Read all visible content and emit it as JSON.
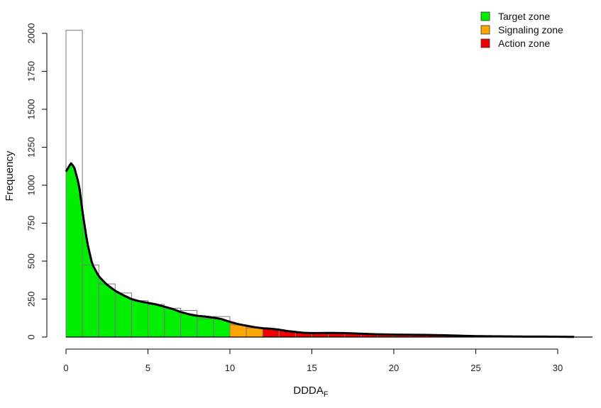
{
  "chart_data": {
    "type": "bar",
    "xlabel": "DDDA",
    "xlabel_sub": "F",
    "ylabel": "Frequency",
    "xlim": [
      0,
      31
    ],
    "ylim": [
      0,
      2000
    ],
    "x_ticks": [
      0,
      5,
      10,
      15,
      20,
      25,
      30
    ],
    "y_ticks": [
      0,
      250,
      500,
      750,
      1000,
      1250,
      1500,
      1750,
      2000
    ],
    "histogram": {
      "bin_width": 1,
      "bins": [
        {
          "x0": 0,
          "x1": 1,
          "count": 2020
        },
        {
          "x0": 1,
          "x1": 2,
          "count": 475
        },
        {
          "x0": 2,
          "x1": 3,
          "count": 350
        },
        {
          "x0": 3,
          "x1": 4,
          "count": 290
        },
        {
          "x0": 4,
          "x1": 5,
          "count": 240
        },
        {
          "x0": 5,
          "x1": 6,
          "count": 215
        },
        {
          "x0": 6,
          "x1": 7,
          "count": 190
        },
        {
          "x0": 7,
          "x1": 8,
          "count": 175
        },
        {
          "x0": 8,
          "x1": 9,
          "count": 120
        },
        {
          "x0": 9,
          "x1": 10,
          "count": 135
        },
        {
          "x0": 10,
          "x1": 11,
          "count": 80
        },
        {
          "x0": 11,
          "x1": 12,
          "count": 60
        },
        {
          "x0": 12,
          "x1": 13,
          "count": 55
        },
        {
          "x0": 13,
          "x1": 14,
          "count": 40
        },
        {
          "x0": 14,
          "x1": 15,
          "count": 30
        },
        {
          "x0": 15,
          "x1": 16,
          "count": 25
        },
        {
          "x0": 16,
          "x1": 17,
          "count": 30
        },
        {
          "x0": 17,
          "x1": 18,
          "count": 25
        },
        {
          "x0": 18,
          "x1": 19,
          "count": 20
        },
        {
          "x0": 19,
          "x1": 20,
          "count": 15
        },
        {
          "x0": 20,
          "x1": 21,
          "count": 15
        },
        {
          "x0": 21,
          "x1": 22,
          "count": 15
        },
        {
          "x0": 22,
          "x1": 23,
          "count": 10
        },
        {
          "x0": 23,
          "x1": 24,
          "count": 8
        },
        {
          "x0": 24,
          "x1": 25,
          "count": 6
        },
        {
          "x0": 25,
          "x1": 26,
          "count": 4
        },
        {
          "x0": 26,
          "x1": 27,
          "count": 3
        },
        {
          "x0": 27,
          "x1": 28,
          "count": 2
        },
        {
          "x0": 28,
          "x1": 29,
          "count": 3
        },
        {
          "x0": 29,
          "x1": 30,
          "count": 2
        }
      ]
    },
    "density_curve": {
      "x": [
        0,
        0.3,
        0.5,
        0.8,
        1.0,
        1.3,
        1.6,
        2.0,
        2.5,
        3.0,
        3.5,
        4.0,
        4.5,
        5.0,
        5.5,
        6.0,
        6.5,
        7.0,
        7.5,
        8.0,
        8.5,
        9.0,
        9.5,
        10.0,
        10.5,
        11.0,
        11.5,
        12.0,
        12.5,
        13.0,
        13.5,
        14.0,
        14.5,
        15.0,
        16.0,
        17.0,
        18.0,
        19.0,
        20.0,
        21.0,
        22.0,
        23.0,
        24.0,
        25.0,
        26.0,
        27.0,
        28.0,
        29.0,
        30.0,
        31.0
      ],
      "y": [
        1090,
        1145,
        1120,
        1000,
        830,
        620,
        480,
        400,
        345,
        305,
        275,
        250,
        235,
        225,
        215,
        200,
        185,
        165,
        150,
        140,
        135,
        128,
        118,
        100,
        85,
        75,
        65,
        58,
        55,
        48,
        40,
        33,
        28,
        26,
        27,
        26,
        22,
        18,
        16,
        15,
        14,
        12,
        9,
        6,
        5,
        4,
        3,
        3,
        2,
        1
      ]
    },
    "zones": [
      {
        "name": "Target zone",
        "from": 0,
        "to": 10,
        "color": "#00ee00"
      },
      {
        "name": "Signaling zone",
        "from": 10,
        "to": 12,
        "color": "#ffa500"
      },
      {
        "name": "Action zone",
        "from": 12,
        "to": 30,
        "color": "#ee0000"
      }
    ],
    "legend": {
      "position": "top-right",
      "entries": [
        "Target zone",
        "Signaling zone",
        "Action zone"
      ]
    },
    "grid": false
  }
}
